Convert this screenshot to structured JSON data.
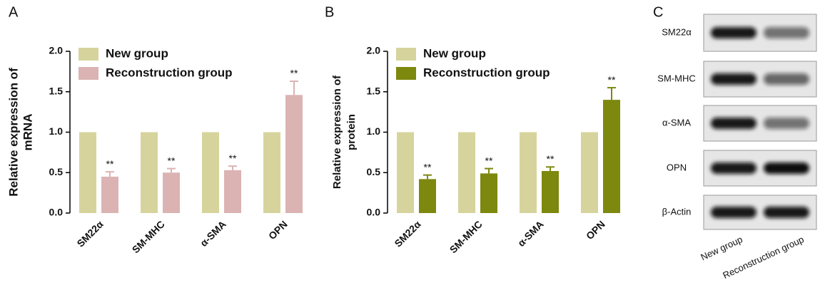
{
  "chart_data": [
    {
      "type": "bar",
      "panel_label": "A",
      "ylabel": [
        "Relative expression of",
        "mRNA"
      ],
      "categories": [
        "SM22α",
        "SM-MHC",
        "α-SMA",
        "OPN"
      ],
      "series": [
        {
          "name": "New group",
          "color": "#d6d49c",
          "values": [
            1.0,
            1.0,
            1.0,
            1.0
          ]
        },
        {
          "name": "Reconstruction group",
          "color": "#dbb3b3",
          "values": [
            0.45,
            0.5,
            0.53,
            1.46
          ],
          "errors": [
            0.06,
            0.05,
            0.05,
            0.17
          ],
          "annotations": [
            "**",
            "**",
            "**",
            "**"
          ]
        }
      ],
      "ylim": [
        0,
        2
      ],
      "yticks": [
        {
          "value": 0,
          "label": "0.0"
        },
        {
          "value": 0.5,
          "label": "0.5"
        },
        {
          "value": 1,
          "label": "1.0"
        },
        {
          "value": 1.5,
          "label": "1.5"
        },
        {
          "value": 2,
          "label": "2.0"
        }
      ],
      "legend": "top-left"
    },
    {
      "type": "bar",
      "panel_label": "B",
      "ylabel": [
        "Relative expression of",
        "protein"
      ],
      "categories": [
        "SM22α",
        "SM-MHC",
        "α-SMA",
        "OPN"
      ],
      "series": [
        {
          "name": "New group",
          "color": "#d6d49c",
          "values": [
            1.0,
            1.0,
            1.0,
            1.0
          ]
        },
        {
          "name": "Reconstruction group",
          "color": "#7d880e",
          "values": [
            0.42,
            0.49,
            0.52,
            1.4
          ],
          "errors": [
            0.05,
            0.06,
            0.05,
            0.15
          ],
          "annotations": [
            "**",
            "**",
            "**",
            "**"
          ]
        }
      ],
      "ylim": [
        0,
        2
      ],
      "yticks": [
        {
          "value": 0,
          "label": "0.0"
        },
        {
          "value": 0.5,
          "label": "0.5"
        },
        {
          "value": 1,
          "label": "1.0"
        },
        {
          "value": 1.5,
          "label": "1.5"
        },
        {
          "value": 2,
          "label": "2.0"
        }
      ],
      "legend": "top-left"
    }
  ],
  "blot": {
    "label": "C",
    "rows": [
      "SM22α",
      "SM-MHC",
      "α-SMA",
      "OPN",
      "β-Actin"
    ],
    "columns": [
      "New group",
      "Reconstruction group"
    ]
  }
}
